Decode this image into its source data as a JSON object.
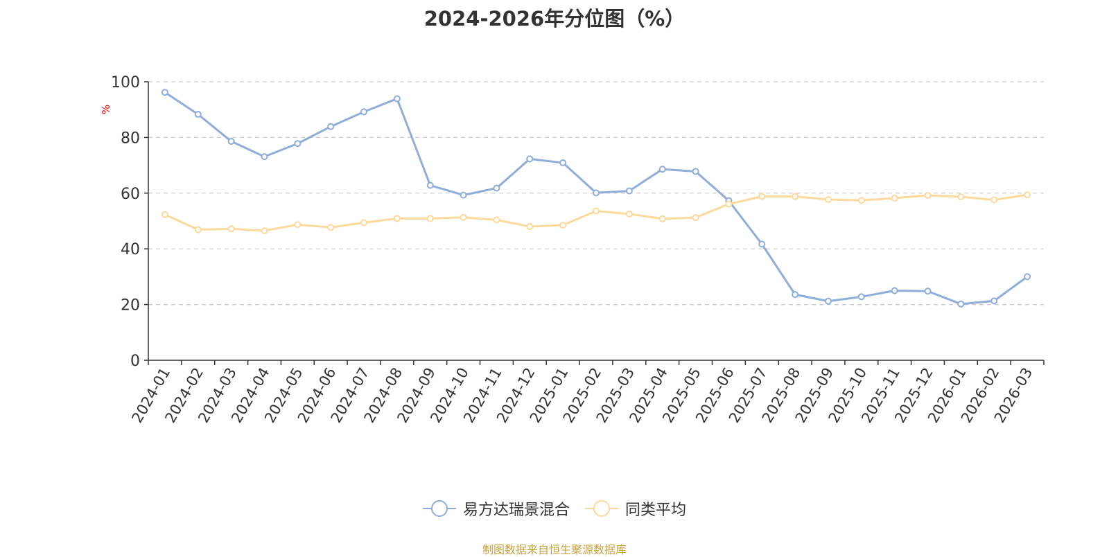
{
  "chart_data": {
    "type": "line",
    "title": "2024-2026年分位图（%）",
    "ylabel": "%",
    "ylim": [
      0,
      100
    ],
    "yticks": [
      0,
      20,
      40,
      60,
      80,
      100
    ],
    "grid": true,
    "legend_position": "bottom",
    "categories": [
      "2024-01",
      "2024-02",
      "2024-03",
      "2024-04",
      "2024-05",
      "2024-06",
      "2024-07",
      "2024-08",
      "2024-09",
      "2024-10",
      "2024-11",
      "2024-12",
      "2025-01",
      "2025-02",
      "2025-03",
      "2025-04",
      "2025-05",
      "2025-06",
      "2025-07",
      "2025-08",
      "2025-09",
      "2025-10",
      "2025-11",
      "2025-12",
      "2026-01",
      "2026-02",
      "2026-03"
    ],
    "series": [
      {
        "name": "易方达瑞景混合",
        "color": "#8eadd9",
        "values": [
          96.2,
          88.3,
          78.6,
          73.1,
          77.8,
          83.9,
          89.2,
          93.9,
          62.8,
          59.3,
          61.8,
          72.3,
          70.9,
          60.1,
          60.8,
          68.6,
          67.8,
          57.3,
          41.7,
          23.6,
          21.2,
          22.8,
          25.0,
          24.8,
          20.2,
          21.3,
          30.0
        ]
      },
      {
        "name": "同类平均",
        "color": "#fdd99b",
        "values": [
          52.3,
          46.9,
          47.2,
          46.5,
          48.7,
          47.7,
          49.4,
          50.9,
          50.9,
          51.3,
          50.4,
          48.0,
          48.5,
          53.6,
          52.5,
          50.8,
          51.2,
          56.1,
          58.8,
          58.8,
          57.7,
          57.4,
          58.2,
          59.2,
          58.7,
          57.6,
          59.4
        ]
      }
    ]
  },
  "source_note": "制图数据来自恒生聚源数据库",
  "colors": {
    "axis": "#333333",
    "grid": "#cccccc",
    "unit": "#ff0000",
    "source": "#c8a23c"
  }
}
